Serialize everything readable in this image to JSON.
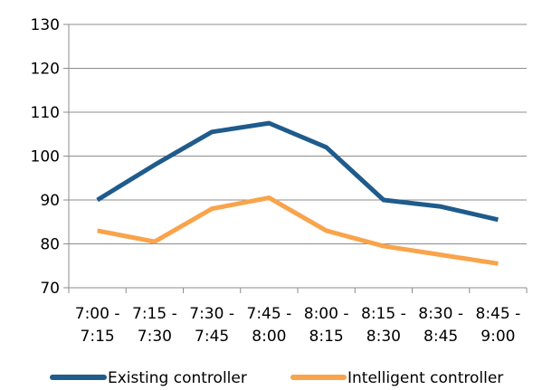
{
  "chart_data": {
    "type": "line",
    "categories": [
      [
        "7:00 -",
        "7:15"
      ],
      [
        "7:15 -",
        "7:30"
      ],
      [
        "7:30 -",
        "7:45"
      ],
      [
        "7:45 -",
        "8:00"
      ],
      [
        "8:00 -",
        "8:15"
      ],
      [
        "8:15 -",
        "8:30"
      ],
      [
        "8:30 -",
        "8:45"
      ],
      [
        "8:45 -",
        "9:00"
      ]
    ],
    "yticks": [
      "70",
      "80",
      "90",
      "100",
      "110",
      "120",
      "130"
    ],
    "ylim": [
      70,
      130
    ],
    "grid": true,
    "legend_position": "bottom",
    "series": [
      {
        "name": "Existing controller",
        "color": "#1f5b8c",
        "values": [
          90,
          98,
          105.5,
          107.5,
          102,
          90,
          88.5,
          85.5
        ]
      },
      {
        "name": "Intelligent controller",
        "color": "#f9a34b",
        "values": [
          83,
          80.5,
          88,
          90.5,
          83,
          79.5,
          77.5,
          75.5
        ]
      }
    ]
  }
}
